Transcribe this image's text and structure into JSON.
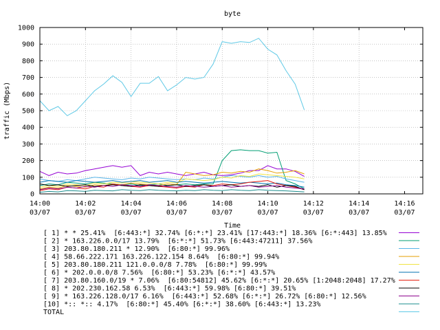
{
  "chart_data": {
    "type": "line",
    "title": "byte",
    "xlabel": "Time",
    "ylabel": "traffic (Mbps)",
    "ylim": [
      0,
      1000
    ],
    "yticks": [
      "0",
      "100",
      "200",
      "300",
      "400",
      "500",
      "600",
      "700",
      "800",
      "900",
      "1000"
    ],
    "xlim": [
      0,
      21
    ],
    "xticks": [
      {
        "time": "14:00",
        "date": "03/07"
      },
      {
        "time": "14:02",
        "date": "03/07"
      },
      {
        "time": "14:04",
        "date": "03/07"
      },
      {
        "time": "14:06",
        "date": "03/07"
      },
      {
        "time": "14:08",
        "date": "03/07"
      },
      {
        "time": "14:10",
        "date": "03/07"
      },
      {
        "time": "14:12",
        "date": "03/07"
      },
      {
        "time": "14:14",
        "date": "03/07"
      },
      {
        "time": "14:16",
        "date": "03/07"
      }
    ],
    "grid": "dotted",
    "legend_position": "bottom",
    "x": [
      0,
      0.5,
      1,
      1.5,
      2,
      2.5,
      3,
      3.5,
      4,
      4.5,
      5,
      5.5,
      6,
      6.5,
      7,
      7.5,
      8,
      8.5,
      9,
      9.5,
      10,
      10.5,
      11,
      11.5,
      12,
      12.5,
      13,
      13.5,
      14,
      14.5
    ],
    "series": [
      {
        "name": "[ 1] * * 25.41%  [6:443:*] 32.74% [6:*:*] 23.41% [17:443:*] 18.36% [6:*:443] 13.85%",
        "color": "#9400d3",
        "values": [
          135,
          110,
          130,
          120,
          125,
          140,
          150,
          160,
          170,
          160,
          170,
          110,
          130,
          120,
          130,
          120,
          110,
          120,
          130,
          115,
          110,
          115,
          125,
          140,
          140,
          170,
          150,
          150,
          135,
          105
        ]
      },
      {
        "name": "[ 2] * 163.226.0.0/17 13.79%  [6:*:*] 51.73% [6:443:47211] 37.56%",
        "color": "#009e73",
        "values": [
          50,
          60,
          55,
          70,
          65,
          60,
          70,
          65,
          60,
          55,
          60,
          50,
          55,
          60,
          50,
          55,
          60,
          55,
          60,
          60,
          200,
          260,
          265,
          260,
          260,
          245,
          250,
          80,
          60,
          30
        ]
      },
      {
        "name": "[ 3] 203.80.180.211 * 12.90%  [6:80:*] 99.96%",
        "color": "#56b4e9",
        "values": [
          90,
          80,
          75,
          85,
          80,
          90,
          100,
          95,
          90,
          85,
          95,
          90,
          100,
          95,
          90,
          85,
          90,
          85,
          95,
          90,
          100,
          110,
          105,
          100,
          110,
          100,
          105,
          90,
          80,
          70
        ]
      },
      {
        "name": "[ 4] 58.66.222.171 163.226.122.154 8.64%  [6:80:*] 99.94%",
        "color": "#e69f00",
        "values": [
          30,
          40,
          35,
          50,
          45,
          40,
          55,
          50,
          60,
          55,
          65,
          60,
          55,
          50,
          60,
          55,
          130,
          120,
          110,
          115,
          130,
          125,
          135,
          130,
          150,
          140,
          125,
          130,
          140,
          120
        ]
      },
      {
        "name": "[ 5] 203.80.180.211 121.0.0.0/8 7.78%  [6:80:*] 99.99%",
        "color": "#f0e442",
        "values": [
          40,
          50,
          45,
          60,
          55,
          50,
          65,
          60,
          70,
          65,
          75,
          70,
          65,
          60,
          70,
          65,
          90,
          85,
          80,
          85,
          100,
          95,
          110,
          105,
          120,
          115,
          110,
          105,
          100,
          90
        ]
      },
      {
        "name": "[ 6] * 202.0.0.0/8 7.56%  [6:80:*] 53.23% [6:*:*] 43.57%",
        "color": "#0072b2",
        "values": [
          70,
          80,
          75,
          70,
          80,
          75,
          70,
          75,
          80,
          70,
          75,
          80,
          70,
          75,
          80,
          70,
          75,
          70,
          65,
          70,
          75,
          70,
          65,
          70,
          65,
          60,
          65,
          55,
          50,
          40
        ]
      },
      {
        "name": "[ 7] 203.80.160.0/19 * 7.06%  [6:80:54812] 45.62% [6:*:*] 20.65% [1:2048:2048] 17.27%",
        "color": "#e51e10",
        "values": [
          20,
          30,
          25,
          40,
          35,
          30,
          45,
          40,
          60,
          50,
          45,
          40,
          50,
          45,
          40,
          35,
          45,
          40,
          55,
          50,
          60,
          55,
          60,
          70,
          75,
          80,
          60,
          50,
          40,
          25
        ]
      },
      {
        "name": "[ 8] * 202.230.162.58 6.53%  [6:443:*] 59.98% [6:80:*] 39.51%",
        "color": "#000000",
        "values": [
          60,
          50,
          55,
          45,
          50,
          55,
          45,
          50,
          55,
          50,
          45,
          55,
          50,
          45,
          50,
          55,
          45,
          50,
          55,
          45,
          50,
          55,
          45,
          50,
          45,
          55,
          40,
          50,
          45,
          25
        ]
      },
      {
        "name": "[ 9] * 163.226.128.0/17 6.16%  [6:443:*] 52.68% [6:*:*] 26.72% [6:80:*] 12.56%",
        "color": "#8b008b",
        "values": [
          25,
          35,
          30,
          40,
          35,
          45,
          40,
          50,
          45,
          55,
          50,
          45,
          55,
          50,
          45,
          40,
          50,
          45,
          40,
          45,
          50,
          40,
          45,
          50,
          40,
          45,
          50,
          40,
          35,
          30
        ]
      },
      {
        "name": "[10] *:: *:: 4.17%  [6:80:*] 45.40% [6:*:*] 38.60% [6:443:*] 13.23%",
        "color": "#1a8c8c",
        "values": [
          10,
          15,
          12,
          20,
          18,
          15,
          22,
          20,
          18,
          25,
          22,
          20,
          25,
          22,
          20,
          18,
          22,
          20,
          25,
          22,
          20,
          25,
          22,
          20,
          25,
          22,
          20,
          18,
          15,
          12
        ]
      },
      {
        "name": "TOTAL",
        "color": "#5fc9e6",
        "values": [
          560,
          500,
          525,
          470,
          500,
          560,
          620,
          660,
          710,
          670,
          585,
          665,
          665,
          705,
          620,
          655,
          700,
          690,
          700,
          780,
          915,
          905,
          915,
          910,
          935,
          870,
          835,
          740,
          660,
          505
        ]
      }
    ]
  }
}
